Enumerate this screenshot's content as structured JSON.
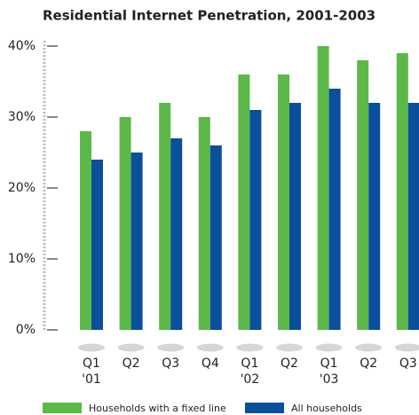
{
  "chart_data": {
    "type": "bar",
    "title": "Residential Internet Penetration, 2001-2003",
    "categories": [
      "Q1\n'01",
      "Q2",
      "Q3",
      "Q4",
      "Q1\n'02",
      "Q2",
      "Q1\n'03",
      "Q2",
      "Q3"
    ],
    "series": [
      {
        "name": "Households with a fixed line",
        "color": "#5cb848",
        "values": [
          28,
          30,
          32,
          30,
          36,
          36,
          40,
          38,
          39
        ]
      },
      {
        "name": "All households",
        "color": "#0a4f9c",
        "values": [
          24,
          25,
          27,
          26,
          31,
          32,
          34,
          32,
          32
        ]
      }
    ],
    "ylim": [
      0,
      40
    ],
    "yticks": [
      {
        "value": 0,
        "label": "0%"
      },
      {
        "value": 10,
        "label": "10%"
      },
      {
        "value": 20,
        "label": "20%"
      },
      {
        "value": 30,
        "label": "30%"
      },
      {
        "value": 40,
        "label": "40%"
      }
    ],
    "legend": "bottom"
  }
}
